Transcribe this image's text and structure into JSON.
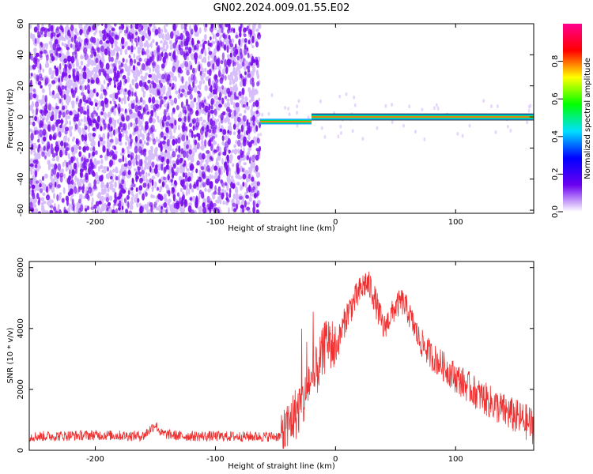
{
  "title": "GN02.2024.009.01.55.E02",
  "colors": {
    "scatter_purple": "#7b10ee",
    "scatter_light": "#d7bdfb",
    "signal_red": "#ef3030",
    "axis": "#000000"
  },
  "chart_data": [
    {
      "type": "heatmap",
      "xlabel": "Height of straight line (km)",
      "ylabel": "Frequency (Hz)",
      "xlim": [
        -255,
        165
      ],
      "ylim": [
        -62,
        60
      ],
      "xticks": [
        -200,
        -100,
        0,
        100
      ],
      "yticks": [
        60,
        40,
        20,
        0,
        -20,
        -40,
        -60
      ],
      "noise_region_x": [
        -255,
        -63
      ],
      "line_segments": [
        {
          "x": [
            -63,
            -20
          ],
          "y": -3
        },
        {
          "x": [
            -20,
            165
          ],
          "y": 0
        }
      ],
      "grid": false,
      "colorbar": {
        "label": "Normalized spectral amplitude",
        "range": [
          0,
          1
        ],
        "ticks": [
          "0.0",
          "0.2",
          "0.4",
          "0.6",
          "0.8"
        ],
        "colormap": [
          "#ffffff",
          "#6a00f0",
          "#0000ff",
          "#00e0ff",
          "#00ff00",
          "#ffff00",
          "#ff0000",
          "#ff0090"
        ]
      }
    },
    {
      "type": "line",
      "xlabel": "Height of straight line (km)",
      "ylabel": "SNR (10 * v/v)",
      "xlim": [
        -255,
        165
      ],
      "ylim": [
        0,
        6200
      ],
      "xticks": [
        -200,
        -100,
        0,
        100
      ],
      "yticks": [
        0,
        2000,
        4000,
        6000
      ],
      "grid": false,
      "series": [
        {
          "x": [
            -255,
            -200,
            -160,
            -150,
            -145,
            -130,
            -100,
            -60,
            -45,
            -40,
            -38,
            -35,
            -30,
            -25,
            -22,
            -20,
            -15,
            -10,
            -7,
            0,
            10,
            20,
            25,
            30,
            40,
            50,
            55,
            60,
            70,
            80,
            100,
            120,
            140,
            160,
            165
          ],
          "values": [
            450,
            500,
            470,
            850,
            550,
            470,
            460,
            450,
            460,
            600,
            900,
            1100,
            1400,
            1700,
            2400,
            1900,
            2700,
            3200,
            3700,
            3300,
            4500,
            5200,
            5500,
            5300,
            4000,
            4700,
            4900,
            4600,
            3600,
            3100,
            2400,
            1800,
            1300,
            900,
            800
          ]
        }
      ]
    }
  ]
}
